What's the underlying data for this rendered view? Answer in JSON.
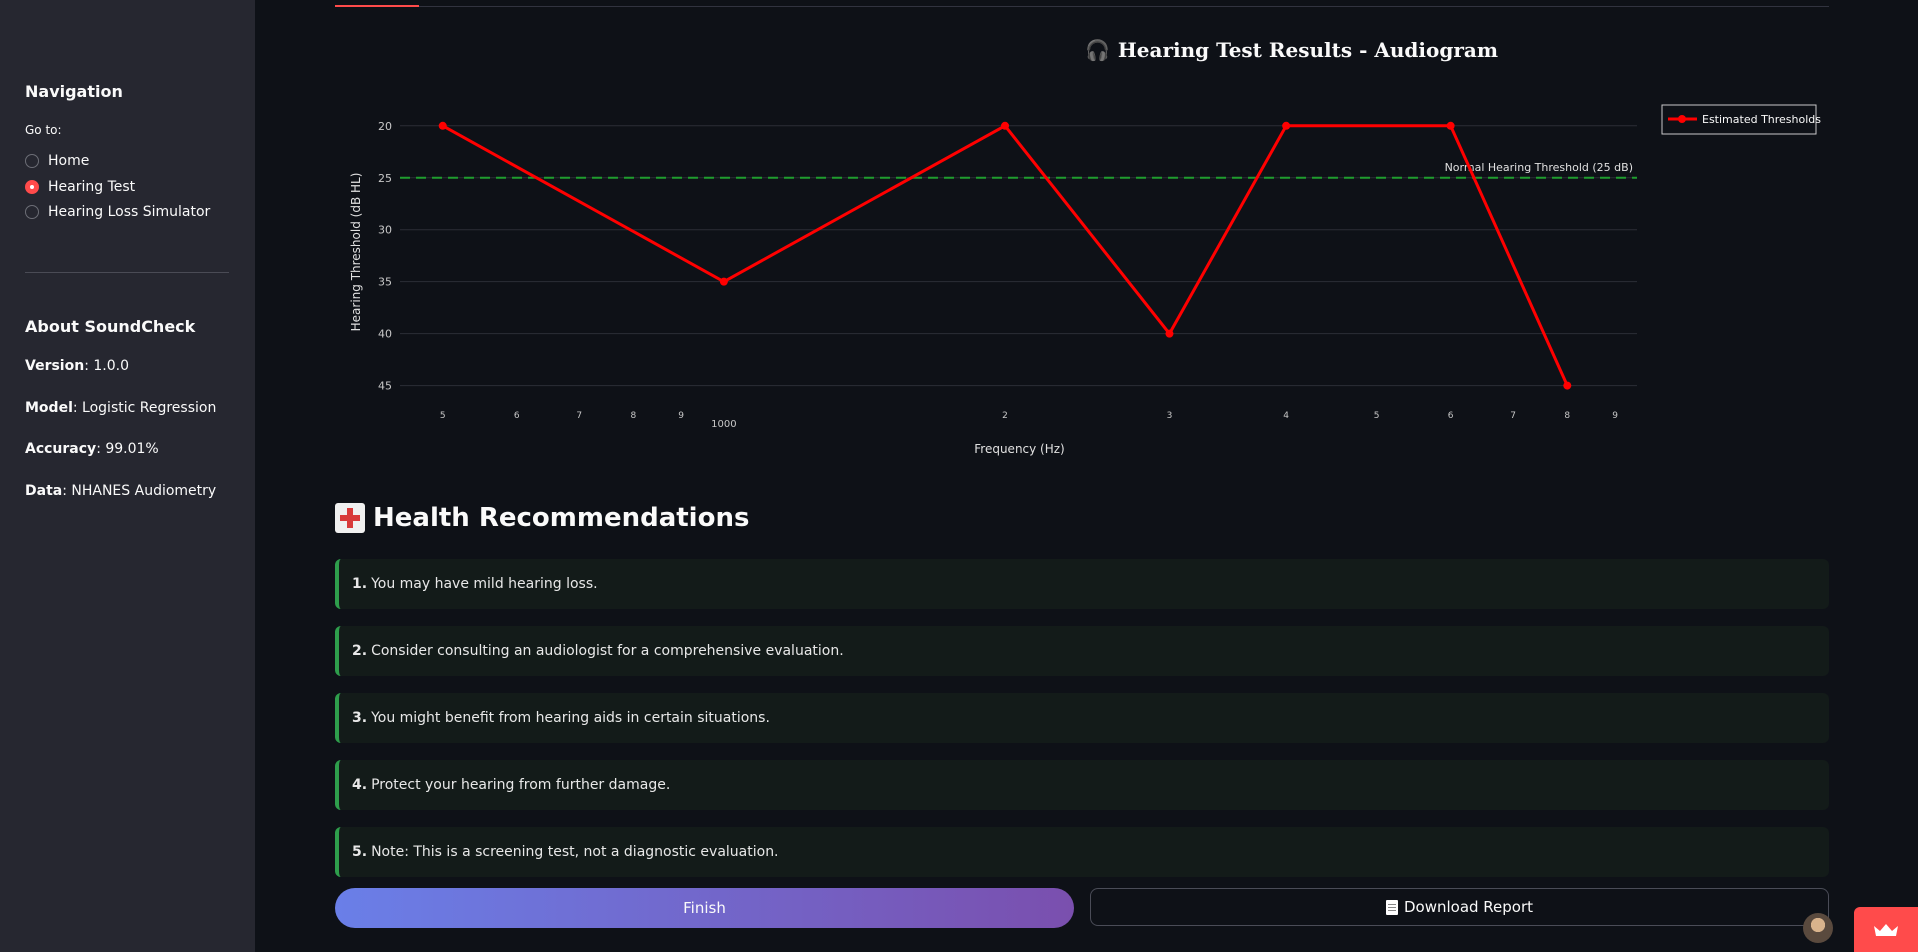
{
  "sidebar": {
    "nav_heading": "Navigation",
    "goto_label": "Go to:",
    "options": [
      {
        "label": "Home",
        "selected": false
      },
      {
        "label": "Hearing Test",
        "selected": true
      },
      {
        "label": "Hearing Loss Simulator",
        "selected": false
      }
    ],
    "about_heading": "About SoundCheck",
    "meta": [
      {
        "key": "Version",
        "value": ": 1.0.0"
      },
      {
        "key": "Model",
        "value": ": Logistic Regression"
      },
      {
        "key": "Accuracy",
        "value": ": 99.01%"
      },
      {
        "key": "Data",
        "value": ": NHANES Audiometry"
      }
    ]
  },
  "chart_title": "Hearing Test Results - Audiogram",
  "chart_data": {
    "type": "line",
    "title": "Hearing Test Results - Audiogram",
    "xlabel": "Frequency (Hz)",
    "ylabel": "Hearing Threshold (dB HL)",
    "x_scale": "log",
    "y_reversed": true,
    "xlim": [
      450,
      9500
    ],
    "ylim": [
      18,
      46
    ],
    "series": [
      {
        "name": "Estimated Thresholds",
        "color": "#ff0000",
        "x": [
          500,
          1000,
          2000,
          3000,
          4000,
          6000,
          8000
        ],
        "y": [
          20,
          35,
          20,
          40,
          20,
          20,
          45
        ]
      }
    ],
    "reference_line": {
      "y": 25,
      "label": "Normal Hearing Threshold (25 dB)",
      "color": "#1f9d2e"
    },
    "y_ticks": [
      20,
      25,
      30,
      35,
      40,
      45
    ],
    "x_ticks": [
      {
        "value": 500,
        "label": "5"
      },
      {
        "value": 600,
        "label": "6"
      },
      {
        "value": 700,
        "label": "7"
      },
      {
        "value": 800,
        "label": "8"
      },
      {
        "value": 900,
        "label": "9"
      },
      {
        "value": 1000,
        "label": "1000",
        "major": true
      },
      {
        "value": 2000,
        "label": "2"
      },
      {
        "value": 3000,
        "label": "3"
      },
      {
        "value": 4000,
        "label": "4"
      },
      {
        "value": 5000,
        "label": "5"
      },
      {
        "value": 6000,
        "label": "6"
      },
      {
        "value": 7000,
        "label": "7"
      },
      {
        "value": 8000,
        "label": "8"
      },
      {
        "value": 9000,
        "label": "9"
      }
    ],
    "legend_position": "top-right",
    "grid": true
  },
  "recommendations": {
    "heading": "Health Recommendations",
    "items": [
      {
        "num": "1.",
        "text": "You may have mild hearing loss."
      },
      {
        "num": "2.",
        "text": "Consider consulting an audiologist for a comprehensive evaluation."
      },
      {
        "num": "3.",
        "text": "You might benefit from hearing aids in certain situations."
      },
      {
        "num": "4.",
        "text": "Protect your hearing from further damage."
      },
      {
        "num": "5.",
        "text": "Note: This is a screening test, not a diagnostic evaluation."
      }
    ]
  },
  "buttons": {
    "finish": "Finish",
    "download": "Download Report"
  },
  "icons": {
    "title_icon": "headphones-icon",
    "heading_icon": "hospital-icon",
    "download_icon": "page-facing-up-icon"
  }
}
